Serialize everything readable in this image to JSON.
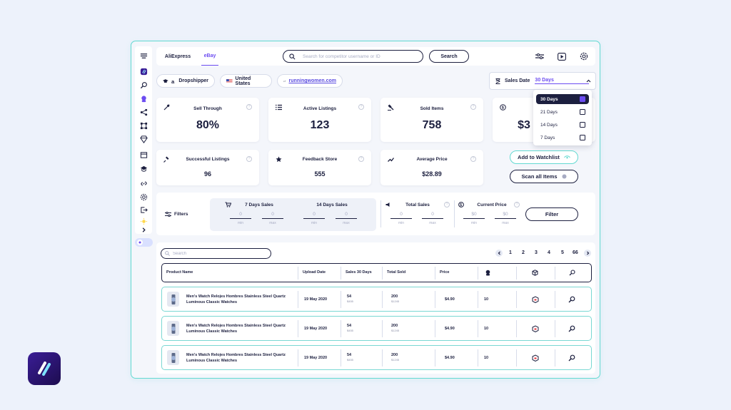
{
  "topbar": {
    "tabs": [
      {
        "label": "AliExpress"
      },
      {
        "label": "eBay"
      }
    ],
    "search_placeholder": "Search for competitor username or ID",
    "search_button": "Search"
  },
  "context": {
    "role": "Dropshipper",
    "country": "United States",
    "store_link": "runningwomen.com"
  },
  "sales_date": {
    "label": "Sales Date",
    "value": "30 Days",
    "options": [
      {
        "label": "30 Days",
        "checked": true
      },
      {
        "label": "21 Days",
        "checked": false
      },
      {
        "label": "14 Days",
        "checked": false
      },
      {
        "label": "7 Days",
        "checked": false
      }
    ]
  },
  "stats": {
    "sell_through": {
      "label": "Sell Through",
      "value": "80%"
    },
    "active_listings": {
      "label": "Active Listings",
      "value": "123"
    },
    "sold_items": {
      "label": "Sold Items",
      "value": "758"
    },
    "revenue": {
      "value": "$3"
    },
    "successful_listings": {
      "label": "Successful Listings",
      "value": "96"
    },
    "feedback_store": {
      "label": "Feedback Store",
      "value": "555"
    },
    "average_price": {
      "label": "Average Price",
      "value": "$28.89"
    }
  },
  "actions": {
    "watchlist": "Add to Watchlist",
    "scan_all": "Scan all Items"
  },
  "filters": {
    "title": "Filters",
    "groups": [
      {
        "label": "7 Days Sales",
        "min": "0",
        "max": "0"
      },
      {
        "label": "14 Days Sales",
        "min": "0",
        "max": "0"
      },
      {
        "label": "Total Sales",
        "min": "0",
        "max": "0"
      },
      {
        "label": "Current Price",
        "min": "$0",
        "max": "$0"
      }
    ],
    "min_label": "min",
    "max_label": "max",
    "button": "Filter"
  },
  "table": {
    "search_placeholder": "Search",
    "pages": [
      "1",
      "2",
      "3",
      "4",
      "5",
      "66"
    ],
    "headers": [
      "Product Name",
      "Upload Date",
      "Sales 30 Days",
      "Total Sold",
      "Price"
    ],
    "rows": [
      {
        "name": "Men's Watch Relojes Hombres Stainless Steel Quartz Luminous Classic Watches",
        "date": "19 May 2020",
        "sales": "54",
        "sales_sub": "$455",
        "sold": "200",
        "sold_sub": "$1245",
        "price": "$4.90",
        "col6": "10"
      },
      {
        "name": "Men's Watch Relojes Hombres Stainless Steel Quartz Luminous Classic Watches",
        "date": "19 May 2020",
        "sales": "54",
        "sales_sub": "$455",
        "sold": "200",
        "sold_sub": "$1245",
        "price": "$4.90",
        "col6": "10"
      },
      {
        "name": "Men's Watch Relojes Hombres Stainless Steel Quartz Luminous Classic Watches",
        "date": "19 May 2020",
        "sales": "54",
        "sales_sub": "$455",
        "sold": "200",
        "sold_sub": "$1245",
        "price": "$4.90",
        "col6": "10"
      }
    ]
  },
  "colors": {
    "accent": "#6c4cf1",
    "dark": "#1c1f3f",
    "frame": "#63d9d1",
    "background": "#edf2fb"
  }
}
